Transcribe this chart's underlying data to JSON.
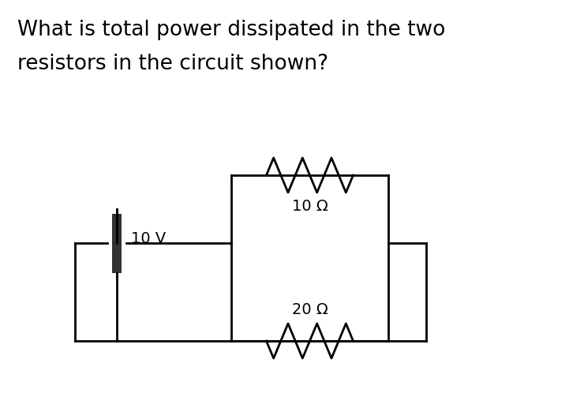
{
  "title_line1": "What is total power dissipated in the two",
  "title_line2": "resistors in the circuit shown?",
  "background_color": "#ffffff",
  "line_color": "#000000",
  "line_width": 2.0,
  "battery_label": "10 V",
  "r1_label": "10 Ω",
  "r2_label": "20 Ω",
  "font_size_title": 19,
  "font_size_label": 14,
  "fig_width": 7.4,
  "fig_height": 4.98,
  "dpi": 100
}
